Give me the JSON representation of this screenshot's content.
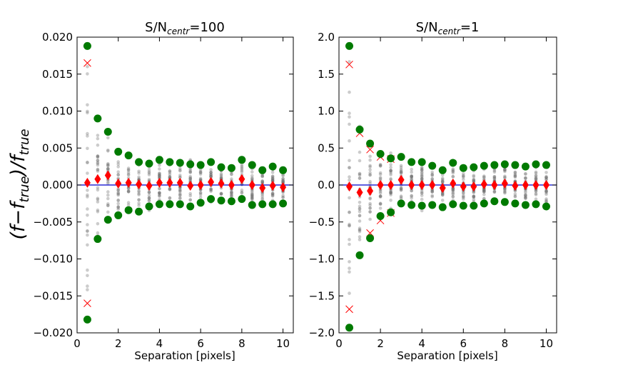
{
  "figure": {
    "ylabel_main": "(f−f",
    "ylabel_sub1": "true",
    "ylabel_mid": ")/f",
    "ylabel_sub2": "true",
    "colors": {
      "scatter": "#6e6e6e",
      "mean": "#ff0000",
      "std": "#007a00",
      "cross": "#ff0000",
      "zero_line": "#0000cc"
    }
  },
  "chart_data": [
    {
      "type": "scatter",
      "title_main": "S/N",
      "title_sub": "centr",
      "title_rest": "=100",
      "xlabel": "Separation [pixels]",
      "xlim": [
        0,
        10.5
      ],
      "ylim": [
        -0.02,
        0.02
      ],
      "xticks": [
        0,
        2,
        4,
        6,
        8,
        10
      ],
      "xtick_labels": [
        "0",
        "2",
        "4",
        "6",
        "8",
        "10"
      ],
      "yticks": [
        -0.02,
        -0.015,
        -0.01,
        -0.005,
        0.0,
        0.005,
        0.01,
        0.015,
        0.02
      ],
      "ytick_labels": [
        "−0.020",
        "−0.015",
        "−0.010",
        "−0.005",
        "0.000",
        "0.005",
        "0.010",
        "0.015",
        "0.020"
      ],
      "x": [
        0.5,
        1.0,
        1.5,
        2.0,
        2.5,
        3.0,
        3.5,
        4.0,
        4.5,
        5.0,
        5.5,
        6.0,
        6.5,
        7.0,
        7.5,
        8.0,
        8.5,
        9.0,
        9.5,
        10.0
      ],
      "series": [
        {
          "name": "mean",
          "marker": "diamond",
          "values": [
            0.0003,
            0.0008,
            0.0013,
            0.0002,
            0.0003,
            0.0001,
            -0.0001,
            0.0003,
            0.0003,
            0.0003,
            -0.0001,
            0.0,
            0.0004,
            0.0002,
            0.0,
            0.0008,
            0.0,
            -0.0004,
            -0.0001,
            -0.0003
          ]
        },
        {
          "name": "upper",
          "marker": "circle",
          "values": [
            0.0188,
            0.009,
            0.0072,
            0.0045,
            0.004,
            0.0031,
            0.0029,
            0.0034,
            0.0031,
            0.003,
            0.0028,
            0.0027,
            0.0031,
            0.0024,
            0.0023,
            0.0034,
            0.0027,
            0.002,
            0.0025,
            0.002
          ]
        },
        {
          "name": "lower",
          "marker": "circle",
          "values": [
            -0.0182,
            -0.0073,
            -0.0047,
            -0.0041,
            -0.0034,
            -0.0036,
            -0.0029,
            -0.0026,
            -0.0026,
            -0.0026,
            -0.0029,
            -0.0024,
            -0.0019,
            -0.0021,
            -0.0022,
            -0.0019,
            -0.0027,
            -0.0026,
            -0.0026,
            -0.0025
          ]
        },
        {
          "name": "cross",
          "marker": "x",
          "x": [
            0.5,
            0.5
          ],
          "values": [
            0.0165,
            -0.016
          ]
        }
      ]
    },
    {
      "type": "scatter",
      "title_main": "S/N",
      "title_sub": "centr",
      "title_rest": "=1",
      "xlabel": "Separation [pixels]",
      "xlim": [
        0,
        10.5
      ],
      "ylim": [
        -2.0,
        2.0
      ],
      "xticks": [
        0,
        2,
        4,
        6,
        8,
        10
      ],
      "xtick_labels": [
        "0",
        "2",
        "4",
        "6",
        "8",
        "10"
      ],
      "yticks": [
        -2.0,
        -1.5,
        -1.0,
        -0.5,
        0.0,
        0.5,
        1.0,
        1.5,
        2.0
      ],
      "ytick_labels": [
        "−2.0",
        "−1.5",
        "−1.0",
        "−0.5",
        "0.0",
        "0.5",
        "1.0",
        "1.5",
        "2.0"
      ],
      "x": [
        0.5,
        1.0,
        1.5,
        2.0,
        2.5,
        3.0,
        3.5,
        4.0,
        4.5,
        5.0,
        5.5,
        6.0,
        6.5,
        7.0,
        7.5,
        8.0,
        8.5,
        9.0,
        9.5,
        10.0
      ],
      "series": [
        {
          "name": "mean",
          "marker": "diamond",
          "values": [
            -0.02,
            -0.1,
            -0.08,
            0.0,
            0.0,
            0.07,
            0.0,
            0.0,
            0.0,
            -0.04,
            0.02,
            -0.02,
            -0.02,
            0.01,
            0.0,
            0.02,
            -0.01,
            0.0,
            0.0,
            0.0
          ]
        },
        {
          "name": "upper",
          "marker": "circle",
          "values": [
            1.88,
            0.75,
            0.56,
            0.42,
            0.36,
            0.38,
            0.31,
            0.31,
            0.26,
            0.2,
            0.3,
            0.23,
            0.24,
            0.26,
            0.27,
            0.28,
            0.27,
            0.25,
            0.28,
            0.27
          ]
        },
        {
          "name": "lower",
          "marker": "circle",
          "values": [
            -1.93,
            -0.95,
            -0.72,
            -0.42,
            -0.37,
            -0.25,
            -0.27,
            -0.28,
            -0.27,
            -0.3,
            -0.26,
            -0.28,
            -0.28,
            -0.25,
            -0.22,
            -0.23,
            -0.25,
            -0.27,
            -0.26,
            -0.29
          ]
        },
        {
          "name": "cross",
          "marker": "x",
          "x": [
            0.5,
            0.5,
            1.0,
            1.5,
            1.5,
            2.0,
            2.0,
            2.5,
            2.5
          ],
          "values": [
            1.63,
            -1.68,
            0.7,
            0.48,
            -0.65,
            0.38,
            -0.48,
            0.35,
            -0.38
          ]
        }
      ]
    }
  ]
}
